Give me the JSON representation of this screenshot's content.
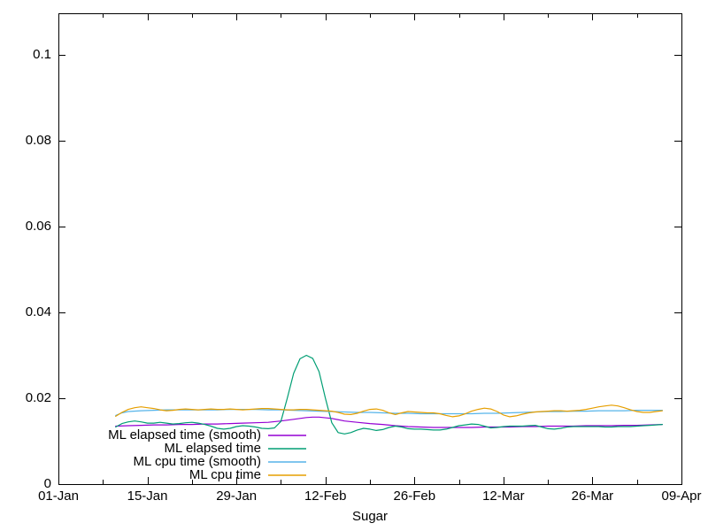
{
  "figure": {
    "background_color": "#ffffff",
    "axis_color": "#000000",
    "text_color": "#000000"
  },
  "axes": {
    "x": {
      "major_ticks": [
        {
          "day": 0,
          "label": "01-Jan"
        },
        {
          "day": 14,
          "label": "15-Jan"
        },
        {
          "day": 28,
          "label": "29-Jan"
        },
        {
          "day": 42,
          "label": "12-Feb"
        },
        {
          "day": 56,
          "label": "26-Feb"
        },
        {
          "day": 70,
          "label": "12-Mar"
        },
        {
          "day": 84,
          "label": "26-Mar"
        },
        {
          "day": 98,
          "label": "09-Apr"
        }
      ],
      "minor_tick_days": [
        7,
        21,
        35,
        49,
        63,
        77,
        91
      ]
    },
    "y": {
      "major_ticks": [
        {
          "value": 0,
          "label": "0"
        },
        {
          "value": 0.02,
          "label": "0.02"
        },
        {
          "value": 0.04,
          "label": "0.04"
        },
        {
          "value": 0.06,
          "label": "0.06"
        },
        {
          "value": 0.08,
          "label": "0.08"
        },
        {
          "value": 0.1,
          "label": "0.1"
        }
      ]
    }
  },
  "chart_data": {
    "type": "line",
    "title": "",
    "xlabel": "Sugar",
    "ylabel": "",
    "x_unit": "days since 01-Jan",
    "xlim_days": [
      0,
      98
    ],
    "ylim": [
      0,
      0.1097
    ],
    "grid": false,
    "legend_position": "bottom-left-inside",
    "series": [
      {
        "name": "ML elapsed time (smooth)",
        "color": "#9400d3",
        "points": [
          [
            9,
            0.0135
          ],
          [
            11,
            0.0136
          ],
          [
            13,
            0.0137
          ],
          [
            15,
            0.0138
          ],
          [
            17,
            0.0138
          ],
          [
            19,
            0.0139
          ],
          [
            21,
            0.0139
          ],
          [
            23,
            0.014
          ],
          [
            25,
            0.014
          ],
          [
            27,
            0.0141
          ],
          [
            29,
            0.0142
          ],
          [
            31,
            0.0143
          ],
          [
            33,
            0.0144
          ],
          [
            35,
            0.0147
          ],
          [
            37,
            0.0151
          ],
          [
            39,
            0.0155
          ],
          [
            40,
            0.0156
          ],
          [
            41,
            0.0156
          ],
          [
            43,
            0.0153
          ],
          [
            45,
            0.0147
          ],
          [
            47,
            0.0144
          ],
          [
            49,
            0.0141
          ],
          [
            51,
            0.0139
          ],
          [
            53,
            0.0136
          ],
          [
            55,
            0.0134
          ],
          [
            57,
            0.0133
          ],
          [
            59,
            0.0132
          ],
          [
            61,
            0.0132
          ],
          [
            63,
            0.0132
          ],
          [
            65,
            0.0132
          ],
          [
            67,
            0.0133
          ],
          [
            69,
            0.0133
          ],
          [
            71,
            0.0133
          ],
          [
            73,
            0.0134
          ],
          [
            75,
            0.0134
          ],
          [
            77,
            0.0135
          ],
          [
            79,
            0.0135
          ],
          [
            81,
            0.0135
          ],
          [
            83,
            0.0136
          ],
          [
            85,
            0.0136
          ],
          [
            87,
            0.0136
          ],
          [
            89,
            0.0137
          ],
          [
            91,
            0.0137
          ],
          [
            93,
            0.0138
          ],
          [
            95,
            0.0139
          ]
        ]
      },
      {
        "name": "ML elapsed time",
        "color": "#009e73",
        "points": [
          [
            9,
            0.0133
          ],
          [
            10,
            0.0141
          ],
          [
            11,
            0.0145
          ],
          [
            12,
            0.0147
          ],
          [
            13,
            0.0145
          ],
          [
            14,
            0.0142
          ],
          [
            15,
            0.0142
          ],
          [
            16,
            0.0144
          ],
          [
            17,
            0.0142
          ],
          [
            18,
            0.014
          ],
          [
            19,
            0.0141
          ],
          [
            20,
            0.0143
          ],
          [
            21,
            0.0144
          ],
          [
            22,
            0.0142
          ],
          [
            23,
            0.0139
          ],
          [
            24,
            0.0135
          ],
          [
            25,
            0.013
          ],
          [
            26,
            0.0128
          ],
          [
            27,
            0.013
          ],
          [
            28,
            0.0134
          ],
          [
            29,
            0.0136
          ],
          [
            30,
            0.0135
          ],
          [
            31,
            0.0133
          ],
          [
            32,
            0.013
          ],
          [
            33,
            0.0129
          ],
          [
            34,
            0.0131
          ],
          [
            35,
            0.0146
          ],
          [
            36,
            0.02
          ],
          [
            37,
            0.0258
          ],
          [
            38,
            0.0292
          ],
          [
            39,
            0.03
          ],
          [
            40,
            0.0293
          ],
          [
            41,
            0.0262
          ],
          [
            42,
            0.02
          ],
          [
            43,
            0.0143
          ],
          [
            44,
            0.012
          ],
          [
            45,
            0.0117
          ],
          [
            46,
            0.012
          ],
          [
            47,
            0.0126
          ],
          [
            48,
            0.013
          ],
          [
            49,
            0.0128
          ],
          [
            50,
            0.0125
          ],
          [
            51,
            0.0127
          ],
          [
            52,
            0.0132
          ],
          [
            53,
            0.0135
          ],
          [
            54,
            0.0133
          ],
          [
            55,
            0.0129
          ],
          [
            56,
            0.0128
          ],
          [
            57,
            0.0128
          ],
          [
            58,
            0.0127
          ],
          [
            59,
            0.0126
          ],
          [
            60,
            0.0126
          ],
          [
            61,
            0.0128
          ],
          [
            62,
            0.0132
          ],
          [
            63,
            0.0136
          ],
          [
            64,
            0.0138
          ],
          [
            65,
            0.014
          ],
          [
            66,
            0.0139
          ],
          [
            67,
            0.0135
          ],
          [
            68,
            0.0131
          ],
          [
            69,
            0.0132
          ],
          [
            70,
            0.0134
          ],
          [
            71,
            0.0135
          ],
          [
            72,
            0.0135
          ],
          [
            73,
            0.0135
          ],
          [
            74,
            0.0136
          ],
          [
            75,
            0.0137
          ],
          [
            76,
            0.0133
          ],
          [
            77,
            0.0129
          ],
          [
            78,
            0.0128
          ],
          [
            79,
            0.013
          ],
          [
            80,
            0.0133
          ],
          [
            81,
            0.0134
          ],
          [
            82,
            0.0134
          ],
          [
            83,
            0.0134
          ],
          [
            84,
            0.0134
          ],
          [
            85,
            0.0134
          ],
          [
            86,
            0.0133
          ],
          [
            87,
            0.0133
          ],
          [
            88,
            0.0134
          ],
          [
            89,
            0.0134
          ],
          [
            90,
            0.0134
          ],
          [
            91,
            0.0135
          ],
          [
            92,
            0.0136
          ],
          [
            93,
            0.0137
          ],
          [
            94,
            0.0138
          ],
          [
            95,
            0.0139
          ]
        ]
      },
      {
        "name": "ML cpu time (smooth)",
        "color": "#56b4e9",
        "points": [
          [
            9,
            0.016
          ],
          [
            10,
            0.0166
          ],
          [
            11,
            0.0169
          ],
          [
            13,
            0.0171
          ],
          [
            15,
            0.0172
          ],
          [
            17,
            0.0173
          ],
          [
            19,
            0.0173
          ],
          [
            21,
            0.0173
          ],
          [
            23,
            0.0173
          ],
          [
            25,
            0.0173
          ],
          [
            27,
            0.0174
          ],
          [
            29,
            0.0174
          ],
          [
            31,
            0.0174
          ],
          [
            33,
            0.0173
          ],
          [
            35,
            0.0173
          ],
          [
            37,
            0.0172
          ],
          [
            39,
            0.0171
          ],
          [
            41,
            0.017
          ],
          [
            43,
            0.0169
          ],
          [
            45,
            0.0168
          ],
          [
            47,
            0.0167
          ],
          [
            49,
            0.0167
          ],
          [
            51,
            0.0166
          ],
          [
            53,
            0.0165
          ],
          [
            55,
            0.0165
          ],
          [
            57,
            0.0164
          ],
          [
            59,
            0.0164
          ],
          [
            61,
            0.0164
          ],
          [
            63,
            0.0164
          ],
          [
            65,
            0.0164
          ],
          [
            67,
            0.0165
          ],
          [
            69,
            0.0165
          ],
          [
            71,
            0.0166
          ],
          [
            73,
            0.0167
          ],
          [
            75,
            0.0168
          ],
          [
            77,
            0.0169
          ],
          [
            79,
            0.0169
          ],
          [
            81,
            0.017
          ],
          [
            83,
            0.017
          ],
          [
            85,
            0.0171
          ],
          [
            87,
            0.0171
          ],
          [
            89,
            0.0171
          ],
          [
            91,
            0.0172
          ],
          [
            93,
            0.0172
          ],
          [
            95,
            0.0172
          ]
        ]
      },
      {
        "name": "ML cpu time",
        "color": "#e69f00",
        "points": [
          [
            9,
            0.0158
          ],
          [
            10,
            0.0167
          ],
          [
            11,
            0.0174
          ],
          [
            12,
            0.0178
          ],
          [
            13,
            0.018
          ],
          [
            14,
            0.0178
          ],
          [
            15,
            0.0176
          ],
          [
            16,
            0.0173
          ],
          [
            17,
            0.0171
          ],
          [
            18,
            0.0172
          ],
          [
            19,
            0.0174
          ],
          [
            20,
            0.0175
          ],
          [
            21,
            0.0174
          ],
          [
            22,
            0.0173
          ],
          [
            23,
            0.0174
          ],
          [
            24,
            0.0175
          ],
          [
            25,
            0.0174
          ],
          [
            26,
            0.0174
          ],
          [
            27,
            0.0175
          ],
          [
            28,
            0.0174
          ],
          [
            29,
            0.0173
          ],
          [
            30,
            0.0174
          ],
          [
            31,
            0.0175
          ],
          [
            32,
            0.0176
          ],
          [
            33,
            0.0176
          ],
          [
            34,
            0.0175
          ],
          [
            35,
            0.0174
          ],
          [
            36,
            0.0173
          ],
          [
            37,
            0.0173
          ],
          [
            38,
            0.0174
          ],
          [
            39,
            0.0174
          ],
          [
            40,
            0.0173
          ],
          [
            41,
            0.0172
          ],
          [
            42,
            0.0171
          ],
          [
            43,
            0.017
          ],
          [
            44,
            0.0167
          ],
          [
            45,
            0.0163
          ],
          [
            46,
            0.0162
          ],
          [
            47,
            0.0165
          ],
          [
            48,
            0.017
          ],
          [
            49,
            0.0174
          ],
          [
            50,
            0.0175
          ],
          [
            51,
            0.0172
          ],
          [
            52,
            0.0166
          ],
          [
            53,
            0.0162
          ],
          [
            54,
            0.0166
          ],
          [
            55,
            0.0169
          ],
          [
            56,
            0.0168
          ],
          [
            57,
            0.0167
          ],
          [
            58,
            0.0166
          ],
          [
            59,
            0.0166
          ],
          [
            60,
            0.0164
          ],
          [
            61,
            0.016
          ],
          [
            62,
            0.0157
          ],
          [
            63,
            0.0159
          ],
          [
            64,
            0.0164
          ],
          [
            65,
            0.017
          ],
          [
            66,
            0.0174
          ],
          [
            67,
            0.0177
          ],
          [
            68,
            0.0175
          ],
          [
            69,
            0.0169
          ],
          [
            70,
            0.0161
          ],
          [
            71,
            0.0157
          ],
          [
            72,
            0.0159
          ],
          [
            73,
            0.0163
          ],
          [
            74,
            0.0166
          ],
          [
            75,
            0.0168
          ],
          [
            76,
            0.0169
          ],
          [
            77,
            0.017
          ],
          [
            78,
            0.0171
          ],
          [
            79,
            0.0171
          ],
          [
            80,
            0.017
          ],
          [
            81,
            0.0171
          ],
          [
            82,
            0.0172
          ],
          [
            83,
            0.0174
          ],
          [
            84,
            0.0177
          ],
          [
            85,
            0.018
          ],
          [
            86,
            0.0182
          ],
          [
            87,
            0.0184
          ],
          [
            88,
            0.0182
          ],
          [
            89,
            0.0178
          ],
          [
            90,
            0.0173
          ],
          [
            91,
            0.0169
          ],
          [
            92,
            0.0167
          ],
          [
            93,
            0.0167
          ],
          [
            94,
            0.0169
          ],
          [
            95,
            0.0171
          ]
        ]
      }
    ]
  }
}
